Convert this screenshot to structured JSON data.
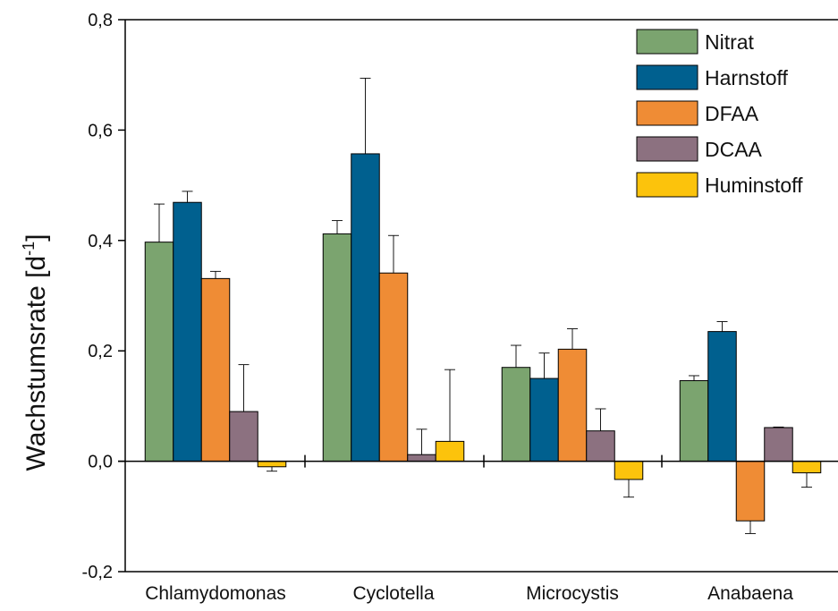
{
  "chart_data": {
    "type": "bar",
    "categories": [
      "Chlamydomonas",
      "Cyclotella",
      "Microcystis",
      "Anabaena"
    ],
    "ylabel": "Wachstumsrate [d",
    "ylabel_sup": "-1",
    "ylabel_close": "]",
    "ylim": [
      -0.2,
      0.8
    ],
    "yticks": [
      -0.2,
      0.0,
      0.2,
      0.4,
      0.6,
      0.8
    ],
    "ytick_labels": [
      "-0,2",
      "0,0",
      "0,2",
      "0,4",
      "0,6",
      "0,8"
    ],
    "grid": false,
    "legend_position": "top-right",
    "series": [
      {
        "name": "Nitrat",
        "color": "#7ba46f",
        "values": [
          0.397,
          0.412,
          0.17,
          0.146
        ],
        "errors": [
          0.069,
          0.024,
          0.04,
          0.009
        ]
      },
      {
        "name": "Harnstoff",
        "color": "#00608f",
        "values": [
          0.469,
          0.557,
          0.15,
          0.235
        ],
        "errors": [
          0.02,
          0.137,
          0.046,
          0.018
        ]
      },
      {
        "name": "DFAA",
        "color": "#ef8c35",
        "values": [
          0.331,
          0.341,
          0.203,
          -0.108
        ],
        "errors": [
          0.013,
          0.068,
          0.037,
          0.023
        ]
      },
      {
        "name": "DCAA",
        "color": "#8c7180",
        "values": [
          0.09,
          0.012,
          0.055,
          0.061
        ],
        "errors": [
          0.085,
          0.046,
          0.04,
          0.001
        ]
      },
      {
        "name": "Huminstoff",
        "color": "#fcc30c",
        "values": [
          -0.01,
          0.036,
          -0.033,
          -0.021
        ],
        "errors": [
          0.008,
          0.13,
          0.032,
          0.026
        ]
      }
    ]
  }
}
